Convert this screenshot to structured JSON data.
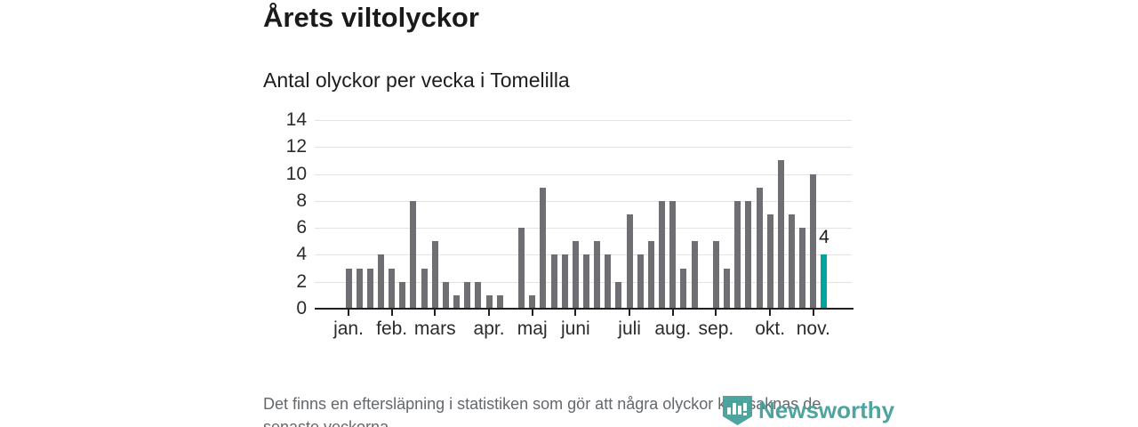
{
  "header": {
    "title": "Årets viltolyckor",
    "subtitle": "Antal olyckor per vecka i Tomelilla"
  },
  "chart_data": {
    "type": "bar",
    "title": "Årets viltolyckor",
    "subtitle": "Antal olyckor per vecka i Tomelilla",
    "x_unit": "vecka",
    "values": [
      3,
      3,
      3,
      4,
      3,
      2,
      8,
      3,
      5,
      2,
      1,
      2,
      2,
      1,
      1,
      0,
      6,
      1,
      9,
      4,
      4,
      5,
      4,
      5,
      4,
      2,
      7,
      4,
      5,
      8,
      8,
      3,
      5,
      0,
      5,
      3,
      8,
      8,
      9,
      7,
      11,
      7,
      6,
      10,
      4
    ],
    "highlight_last_bar": true,
    "last_value_label": "4",
    "y_ticks": [
      0,
      2,
      4,
      6,
      8,
      10,
      12,
      14
    ],
    "ylim": [
      0,
      14
    ],
    "grid": true,
    "month_ticks": [
      {
        "label": "jan.",
        "week": 1
      },
      {
        "label": "feb.",
        "week": 5
      },
      {
        "label": "mars",
        "week": 9
      },
      {
        "label": "apr.",
        "week": 14
      },
      {
        "label": "maj",
        "week": 18
      },
      {
        "label": "juni",
        "week": 22
      },
      {
        "label": "juli",
        "week": 27
      },
      {
        "label": "aug.",
        "week": 31
      },
      {
        "label": "sep.",
        "week": 35
      },
      {
        "label": "okt.",
        "week": 40
      },
      {
        "label": "nov.",
        "week": 44
      }
    ],
    "colors": {
      "bar": "#6f6f73",
      "highlight": "#00a5a0",
      "grid": "#e3e3e3",
      "axis": "#1f1f1f",
      "text": "#2b2b2b"
    }
  },
  "footer": {
    "note_lines": [
      "Det finns en eftersläpning i statistiken som gör att några olyckor kan saknas de",
      "senaste veckorna."
    ]
  },
  "logo": {
    "text": "Newsworthy",
    "color": "#45a09a",
    "icon": "newsworthy-banner-chart-icon"
  }
}
